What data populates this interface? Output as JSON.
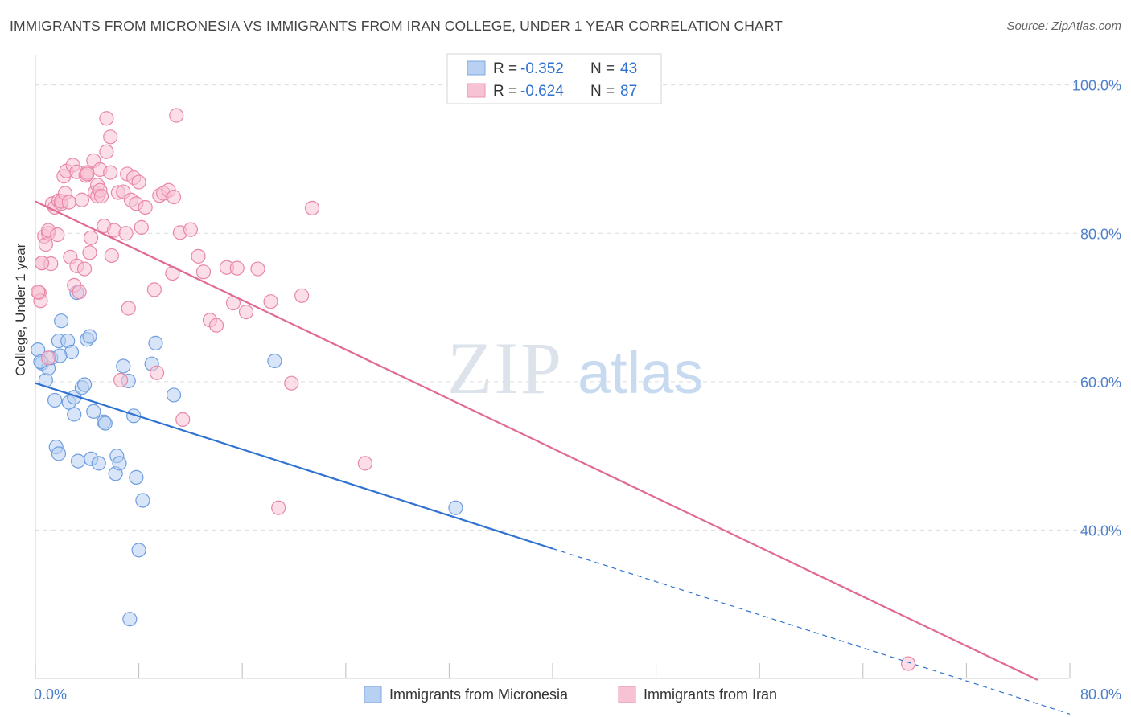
{
  "title": "IMMIGRANTS FROM MICRONESIA VS IMMIGRANTS FROM IRAN COLLEGE, UNDER 1 YEAR CORRELATION CHART",
  "source": "Source: ZipAtlas.com",
  "watermark": {
    "zip": "ZIP",
    "atlas": "atlas"
  },
  "chart_data": {
    "type": "scatter",
    "xlabel": "",
    "ylabel": "College, Under 1 year",
    "xlim": [
      0,
      80
    ],
    "ylim": [
      20,
      103
    ],
    "x_tick_labels": [
      {
        "value": 0,
        "label": "0.0%"
      },
      {
        "value": 80,
        "label": "80.0%"
      }
    ],
    "y_tick_labels": [
      {
        "value": 100,
        "label": "100.0%"
      },
      {
        "value": 80,
        "label": "80.0%"
      },
      {
        "value": 60,
        "label": "60.0%"
      },
      {
        "value": 40,
        "label": "40.0%"
      }
    ],
    "legend_position": "top-center",
    "stats": [
      {
        "r_label": "R =",
        "r_value": "-0.352",
        "n_label": "N =",
        "n_value": "43"
      },
      {
        "r_label": "R =",
        "r_value": "-0.624",
        "n_label": "N =",
        "n_value": "87"
      }
    ],
    "series": [
      {
        "name": "Immigrants from Micronesia",
        "color": "#6f9ee0",
        "fill": "#b8d0f2",
        "line_color": "#2f72d1",
        "trend": {
          "x0": 0,
          "y0": 59.8,
          "x1": 40,
          "y1": 37.5,
          "dash_to_x": 80,
          "dash_to_y": 15.2
        },
        "points": [
          [
            0.2,
            64.3
          ],
          [
            0.5,
            62.5
          ],
          [
            0.8,
            60.2
          ],
          [
            1.0,
            61.8
          ],
          [
            1.2,
            63.2
          ],
          [
            1.5,
            57.5
          ],
          [
            1.6,
            51.2
          ],
          [
            1.8,
            50.3
          ],
          [
            1.8,
            65.5
          ],
          [
            2.0,
            68.2
          ],
          [
            2.5,
            65.5
          ],
          [
            2.6,
            57.2
          ],
          [
            2.8,
            64.0
          ],
          [
            3.0,
            57.9
          ],
          [
            3.0,
            55.6
          ],
          [
            3.2,
            72.0
          ],
          [
            3.3,
            49.3
          ],
          [
            3.6,
            59.2
          ],
          [
            3.8,
            59.6
          ],
          [
            4.0,
            65.7
          ],
          [
            4.2,
            66.1
          ],
          [
            4.3,
            49.6
          ],
          [
            4.5,
            56.0
          ],
          [
            4.9,
            49.0
          ],
          [
            5.3,
            54.6
          ],
          [
            5.4,
            54.4
          ],
          [
            6.2,
            47.6
          ],
          [
            6.3,
            50.0
          ],
          [
            6.5,
            49.0
          ],
          [
            6.8,
            62.1
          ],
          [
            7.2,
            60.1
          ],
          [
            7.6,
            55.4
          ],
          [
            7.8,
            47.1
          ],
          [
            8.0,
            37.3
          ],
          [
            8.3,
            44.0
          ],
          [
            9.0,
            62.4
          ],
          [
            9.3,
            65.2
          ],
          [
            10.7,
            58.2
          ],
          [
            7.3,
            28.0
          ],
          [
            18.5,
            62.8
          ],
          [
            32.5,
            43.0
          ],
          [
            0.4,
            62.7
          ],
          [
            1.9,
            63.5
          ]
        ]
      },
      {
        "name": "Immigrants from Iran",
        "color": "#e987a8",
        "fill": "#f7c3d4",
        "line_color": "#e06a94",
        "trend": {
          "x0": 0,
          "y0": 84.3,
          "x1": 77.5,
          "y1": 19.8
        },
        "points": [
          [
            0.3,
            72.0
          ],
          [
            0.4,
            70.9
          ],
          [
            0.5,
            76.0
          ],
          [
            0.7,
            79.6
          ],
          [
            0.8,
            78.5
          ],
          [
            1.0,
            80.0
          ],
          [
            1.0,
            80.4
          ],
          [
            1.2,
            75.9
          ],
          [
            1.3,
            84.0
          ],
          [
            1.5,
            83.5
          ],
          [
            1.7,
            79.8
          ],
          [
            1.8,
            84.4
          ],
          [
            2.0,
            84.0
          ],
          [
            2.0,
            84.3
          ],
          [
            2.2,
            87.7
          ],
          [
            2.3,
            85.4
          ],
          [
            2.4,
            88.4
          ],
          [
            2.6,
            84.2
          ],
          [
            2.7,
            76.8
          ],
          [
            2.9,
            89.2
          ],
          [
            3.0,
            73.0
          ],
          [
            3.2,
            75.6
          ],
          [
            3.2,
            88.3
          ],
          [
            3.4,
            72.1
          ],
          [
            3.6,
            84.5
          ],
          [
            3.8,
            75.2
          ],
          [
            3.9,
            87.8
          ],
          [
            4.0,
            88.2
          ],
          [
            4.0,
            88.0
          ],
          [
            4.2,
            77.4
          ],
          [
            4.3,
            79.4
          ],
          [
            4.5,
            89.8
          ],
          [
            4.6,
            85.5
          ],
          [
            4.8,
            86.5
          ],
          [
            4.8,
            85.0
          ],
          [
            5.0,
            88.6
          ],
          [
            5.0,
            85.8
          ],
          [
            5.1,
            85.0
          ],
          [
            5.3,
            81.0
          ],
          [
            5.5,
            91.0
          ],
          [
            5.5,
            95.5
          ],
          [
            5.8,
            93.0
          ],
          [
            5.8,
            88.2
          ],
          [
            5.9,
            77.0
          ],
          [
            6.1,
            80.4
          ],
          [
            6.4,
            85.5
          ],
          [
            6.6,
            60.2
          ],
          [
            6.8,
            85.6
          ],
          [
            7.0,
            80.0
          ],
          [
            7.1,
            88.0
          ],
          [
            7.2,
            69.9
          ],
          [
            7.4,
            84.5
          ],
          [
            7.6,
            87.5
          ],
          [
            7.8,
            84.0
          ],
          [
            8.0,
            86.9
          ],
          [
            8.2,
            80.8
          ],
          [
            8.5,
            83.5
          ],
          [
            9.2,
            72.4
          ],
          [
            9.4,
            61.2
          ],
          [
            9.6,
            85.1
          ],
          [
            9.9,
            85.4
          ],
          [
            10.3,
            85.8
          ],
          [
            10.6,
            74.6
          ],
          [
            10.7,
            84.9
          ],
          [
            10.9,
            95.9
          ],
          [
            11.2,
            80.1
          ],
          [
            11.4,
            54.9
          ],
          [
            12.0,
            80.5
          ],
          [
            12.6,
            76.9
          ],
          [
            13.0,
            74.8
          ],
          [
            13.5,
            68.3
          ],
          [
            14.0,
            67.6
          ],
          [
            14.8,
            75.4
          ],
          [
            15.3,
            70.6
          ],
          [
            15.6,
            75.3
          ],
          [
            16.3,
            69.4
          ],
          [
            17.2,
            75.2
          ],
          [
            18.2,
            70.8
          ],
          [
            18.8,
            43.0
          ],
          [
            19.8,
            59.8
          ],
          [
            20.6,
            71.6
          ],
          [
            21.4,
            83.4
          ],
          [
            25.5,
            49.0
          ],
          [
            67.5,
            22.0
          ],
          [
            0.2,
            72.1
          ],
          [
            0.5,
            76.0
          ],
          [
            1.0,
            63.2
          ]
        ]
      }
    ]
  }
}
